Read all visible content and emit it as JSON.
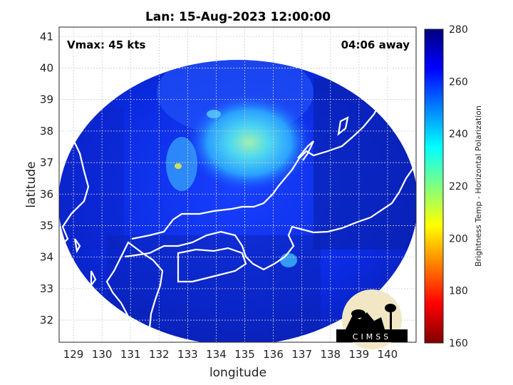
{
  "title": "Lan: 15-Aug-2023 12:00:00",
  "vmax_text": "Vmax: 45 kts",
  "away_text": "04:06 away",
  "xlabel": "longitude",
  "ylabel": "latitude",
  "xticks": [
    "129",
    "130",
    "131",
    "132",
    "133",
    "134",
    "135",
    "136",
    "137",
    "138",
    "139",
    "140"
  ],
  "yticks": [
    "41",
    "40",
    "39",
    "38",
    "37",
    "36",
    "35",
    "34",
    "33",
    "32"
  ],
  "colorbar": {
    "label": "Brightness Temp - Horizontal Polarization",
    "ticks": [
      "280",
      "260",
      "240",
      "220",
      "200",
      "180",
      "160"
    ],
    "min": 160,
    "max": 280,
    "colors": [
      "#7f0000",
      "#ff0000",
      "#ff8000",
      "#ffff00",
      "#80ff80",
      "#00ffff",
      "#0080ff",
      "#0000ff",
      "#00007f"
    ]
  },
  "logo": {
    "text": "CIMSS"
  },
  "map": {
    "lon_range": [
      128.5,
      141
    ],
    "lat_range": [
      31.3,
      41.3
    ],
    "grid": true,
    "coastline_color": "#ffffff"
  }
}
